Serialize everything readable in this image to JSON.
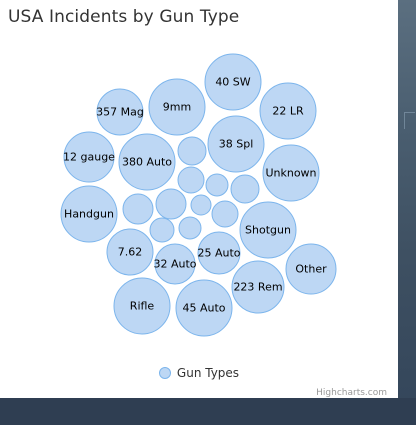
{
  "chart_data": {
    "type": "packed-bubble",
    "title": "USA Incidents by Gun Type",
    "series": [
      {
        "name": "Gun Types",
        "color": "#7cb5ec",
        "points": [
          {
            "label": "40 SW"
          },
          {
            "label": "9mm"
          },
          {
            "label": "357 Mag"
          },
          {
            "label": "22 LR"
          },
          {
            "label": "38 Spl"
          },
          {
            "label": "12 gauge"
          },
          {
            "label": "380 Auto"
          },
          {
            "label": "Unknown"
          },
          {
            "label": ""
          },
          {
            "label": ""
          },
          {
            "label": ""
          },
          {
            "label": ""
          },
          {
            "label": "Handgun"
          },
          {
            "label": ""
          },
          {
            "label": ""
          },
          {
            "label": ""
          },
          {
            "label": ""
          },
          {
            "label": "Shotgun"
          },
          {
            "label": ""
          },
          {
            "label": ""
          },
          {
            "label": "7.62"
          },
          {
            "label": "32 Auto"
          },
          {
            "label": "25 Auto"
          },
          {
            "label": "Other"
          },
          {
            "label": "223 Rem"
          },
          {
            "label": "Rifle"
          },
          {
            "label": "45 Auto"
          }
        ]
      }
    ],
    "legend": {
      "position": "bottom-center",
      "items": [
        "Gun Types"
      ]
    },
    "credits": "Highcharts.com"
  }
}
